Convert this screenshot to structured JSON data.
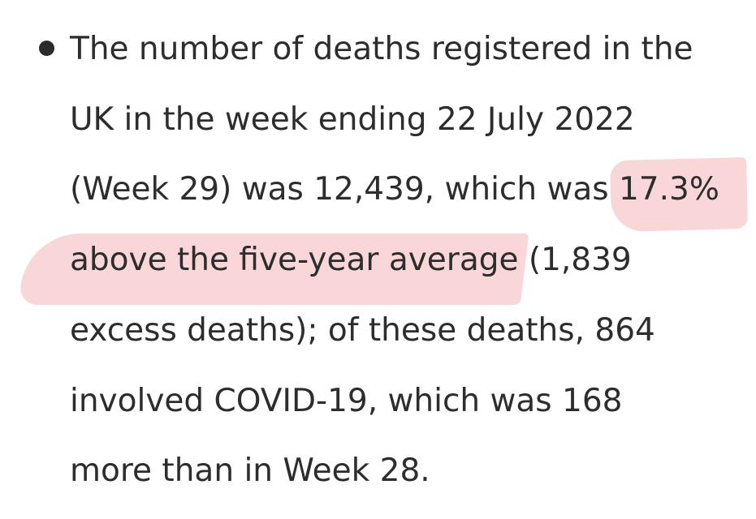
{
  "bullet_item": {
    "lines": [
      "The number of deaths registered in the",
      "UK in the week ending 22 July 2022",
      "(Week 29) was 12,439, which was 17.3%",
      "above the five-year average (1,839",
      "excess deaths); of these deaths, 864",
      "involved COVID-19, which was 168",
      "more than in Week 28."
    ],
    "highlighted_text": "17.3% above the five-year average",
    "highlight_color": "#f9d4d6"
  }
}
